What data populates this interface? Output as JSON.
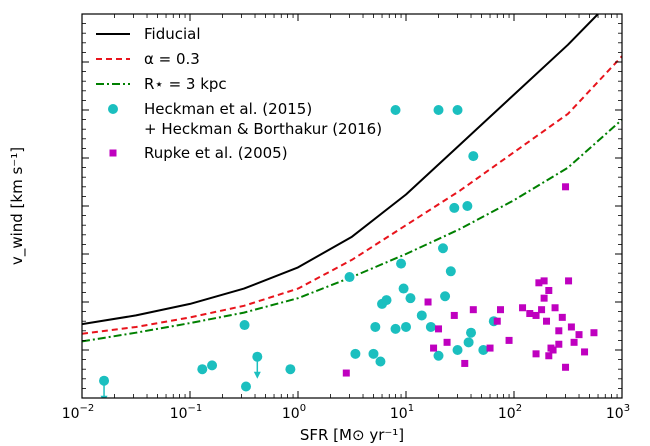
{
  "chart_data": {
    "type": "scatter",
    "xlabel": "SFR [M⊙ yr⁻¹]",
    "ylabel": "v_wind [km s⁻¹]",
    "xscale": "log",
    "xlim": [
      0.01,
      1000
    ],
    "ylim": [
      0,
      2000
    ],
    "x_ticks": [
      {
        "value": 0.01,
        "base": "10",
        "exp": "−2"
      },
      {
        "value": 0.1,
        "base": "10",
        "exp": "−1"
      },
      {
        "value": 1,
        "base": "10",
        "exp": "0"
      },
      {
        "value": 10,
        "base": "10",
        "exp": "1"
      },
      {
        "value": 100,
        "base": "10",
        "exp": "2"
      },
      {
        "value": 1000,
        "base": "10",
        "exp": "3"
      }
    ],
    "y_ticks": [
      "0",
      "250",
      "500",
      "750",
      "1000",
      "1250",
      "1500",
      "1750",
      "2000"
    ],
    "legend_position": "top-left",
    "grid": false,
    "series": [
      {
        "name": "Fiducial",
        "kind": "line",
        "style": "solid",
        "color": "#000000",
        "x": [
          0.01,
          0.0316,
          0.1,
          0.316,
          1,
          3.16,
          10,
          31.6,
          100,
          316,
          600
        ],
        "y": [
          385,
          430,
          490,
          570,
          680,
          840,
          1060,
          1320,
          1580,
          1840,
          2000
        ]
      },
      {
        "name": "α = 0.3",
        "kind": "line",
        "style": "dashed",
        "color": "#e8141c",
        "x": [
          0.01,
          0.0316,
          0.1,
          0.316,
          1,
          3.16,
          10,
          31.6,
          100,
          316,
          1000
        ],
        "y": [
          335,
          370,
          420,
          480,
          570,
          720,
          900,
          1080,
          1280,
          1480,
          1780
        ]
      },
      {
        "name": "R⋆ = 3 kpc",
        "kind": "line",
        "style": "dashdot",
        "color": "#008000",
        "x": [
          0.01,
          0.0316,
          0.1,
          0.316,
          1,
          3.16,
          10,
          31.6,
          100,
          316,
          1000
        ],
        "y": [
          295,
          340,
          390,
          445,
          520,
          630,
          750,
          880,
          1030,
          1200,
          1450
        ]
      },
      {
        "name": "Heckman et al. (2015)\n+ Heckman & Borthakur (2016)",
        "kind": "scatter",
        "marker": "circle",
        "color": "#1bbfbf",
        "x": [
          0.016,
          0.13,
          0.16,
          0.32,
          0.33,
          0.42,
          0.85,
          3,
          3.4,
          5,
          5.2,
          5.8,
          6,
          6.6,
          8,
          9,
          9.5,
          10,
          11,
          14,
          17,
          20,
          22,
          23,
          26,
          28,
          30,
          37,
          38,
          40,
          42,
          8,
          20,
          30,
          65,
          52
        ],
        "y": [
          90,
          150,
          170,
          380,
          60,
          215,
          150,
          630,
          230,
          230,
          370,
          190,
          490,
          510,
          360,
          700,
          570,
          370,
          520,
          430,
          370,
          220,
          780,
          530,
          660,
          990,
          250,
          1000,
          290,
          340,
          1260,
          1500,
          1500,
          1500,
          400,
          250
        ],
        "upper_limit_indices": [
          0,
          5
        ]
      },
      {
        "name": "Rupke et al. (2005)",
        "kind": "scatter",
        "marker": "square",
        "color": "#bf00bf",
        "x": [
          2.8,
          16,
          18,
          20,
          24,
          28,
          35,
          42,
          60,
          70,
          75,
          90,
          120,
          140,
          160,
          170,
          180,
          190,
          200,
          210,
          220,
          240,
          260,
          280,
          300,
          320,
          340,
          360,
          400,
          450,
          550,
          300,
          190,
          210,
          160,
          230,
          260
        ],
        "y": [
          130,
          500,
          260,
          360,
          290,
          430,
          180,
          460,
          260,
          400,
          460,
          300,
          470,
          440,
          230,
          600,
          460,
          610,
          400,
          220,
          260,
          470,
          350,
          420,
          160,
          610,
          370,
          290,
          330,
          240,
          340,
          1100,
          520,
          560,
          430,
          250,
          280
        ]
      }
    ]
  }
}
